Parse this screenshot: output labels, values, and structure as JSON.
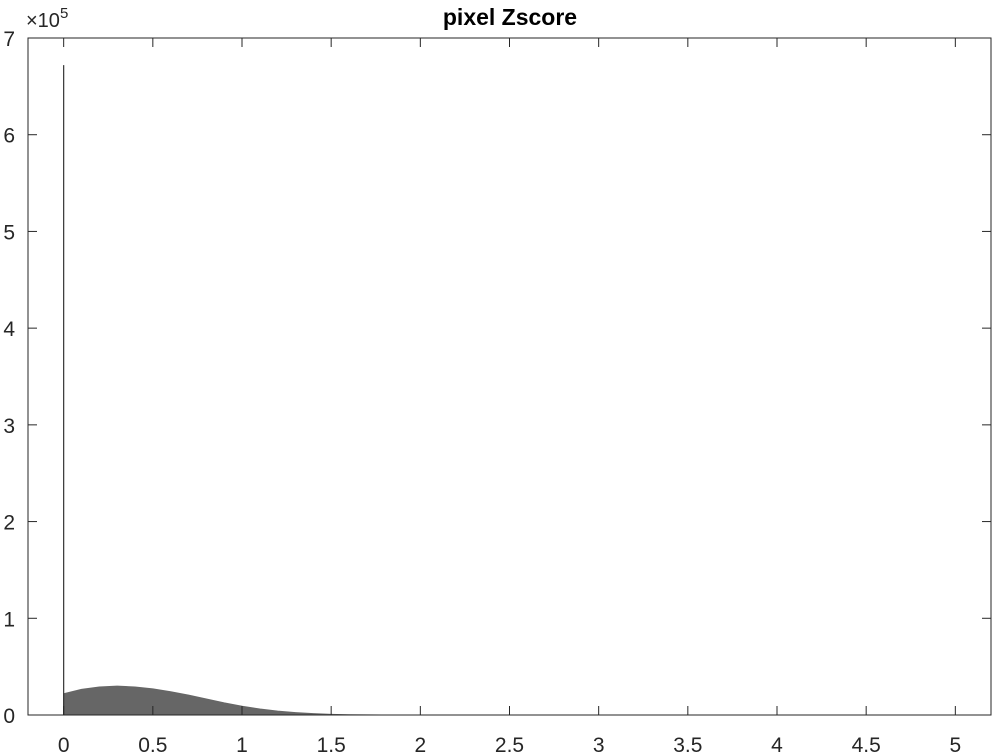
{
  "chart_data": {
    "type": "bar",
    "title": "pixel Zscore",
    "xlabel": "",
    "ylabel": "",
    "xlim": [
      -0.2,
      5.2
    ],
    "ylim": [
      0,
      700000
    ],
    "x_ticks": [
      0,
      0.5,
      1,
      1.5,
      2,
      2.5,
      3,
      3.5,
      4,
      4.5,
      5
    ],
    "x_tick_labels": [
      "0",
      "0.5",
      "1",
      "1.5",
      "2",
      "2.5",
      "3",
      "3.5",
      "4",
      "4.5",
      "5"
    ],
    "y_ticks": [
      0,
      100000,
      200000,
      300000,
      400000,
      500000,
      600000,
      700000
    ],
    "y_tick_labels": [
      "0",
      "1",
      "2",
      "3",
      "4",
      "5",
      "6",
      "7"
    ],
    "y_exponent_label": "×10",
    "y_exponent_power": "5",
    "grid": false,
    "bar_color": "#666666",
    "spike": {
      "x": 0,
      "y": 672000
    },
    "series": [
      {
        "x": [
          0.0,
          0.1,
          0.2,
          0.3,
          0.4,
          0.5,
          0.6,
          0.7,
          0.8,
          0.9,
          1.0,
          1.1,
          1.2,
          1.3,
          1.4,
          1.5,
          1.6,
          1.7,
          1.8
        ],
        "values": [
          22000,
          26500,
          29000,
          29800,
          29000,
          27000,
          24000,
          20500,
          16500,
          12500,
          9000,
          6200,
          4000,
          2500,
          1400,
          700,
          300,
          120,
          0
        ]
      }
    ]
  }
}
